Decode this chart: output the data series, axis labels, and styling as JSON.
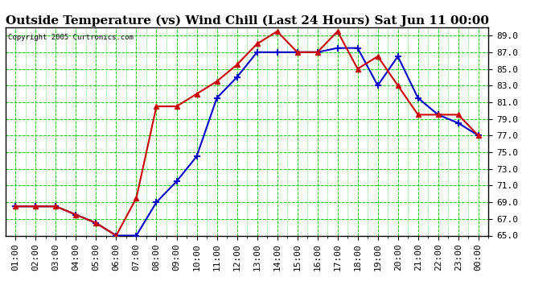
{
  "title": "Outside Temperature (vs) Wind Chill (Last 24 Hours) Sat Jun 11 00:00",
  "copyright": "Copyright 2005 Curtronics.com",
  "x_labels": [
    "01:00",
    "02:00",
    "03:00",
    "04:00",
    "05:00",
    "06:00",
    "07:00",
    "08:00",
    "09:00",
    "10:00",
    "11:00",
    "12:00",
    "13:00",
    "14:00",
    "15:00",
    "16:00",
    "17:00",
    "18:00",
    "19:00",
    "20:00",
    "21:00",
    "22:00",
    "23:00",
    "00:00"
  ],
  "ylim": [
    65.0,
    90.0
  ],
  "yticks": [
    65.0,
    67.0,
    69.0,
    71.0,
    73.0,
    75.0,
    77.0,
    79.0,
    81.0,
    83.0,
    85.0,
    87.0,
    89.0
  ],
  "blue_temp": [
    68.5,
    68.5,
    68.5,
    67.5,
    66.5,
    65.0,
    65.0,
    69.0,
    71.5,
    74.5,
    81.5,
    84.0,
    87.0,
    87.0,
    87.0,
    87.0,
    87.5,
    87.5,
    83.0,
    86.5,
    81.5,
    79.5,
    78.5,
    77.0
  ],
  "red_windchill": [
    68.5,
    68.5,
    68.5,
    67.5,
    66.5,
    65.0,
    69.5,
    80.5,
    80.5,
    82.0,
    83.5,
    85.5,
    88.0,
    89.5,
    87.0,
    87.0,
    89.5,
    85.0,
    86.5,
    83.0,
    79.5,
    79.5,
    79.5,
    77.0
  ],
  "blue_color": "#0000cc",
  "red_color": "#cc0000",
  "grid_color": "#00cc00",
  "bg_color": "#ffffff",
  "title_fontsize": 11,
  "tick_fontsize": 8,
  "marker_size_blue": 3,
  "marker_size_red": 4,
  "linewidth": 1.5
}
